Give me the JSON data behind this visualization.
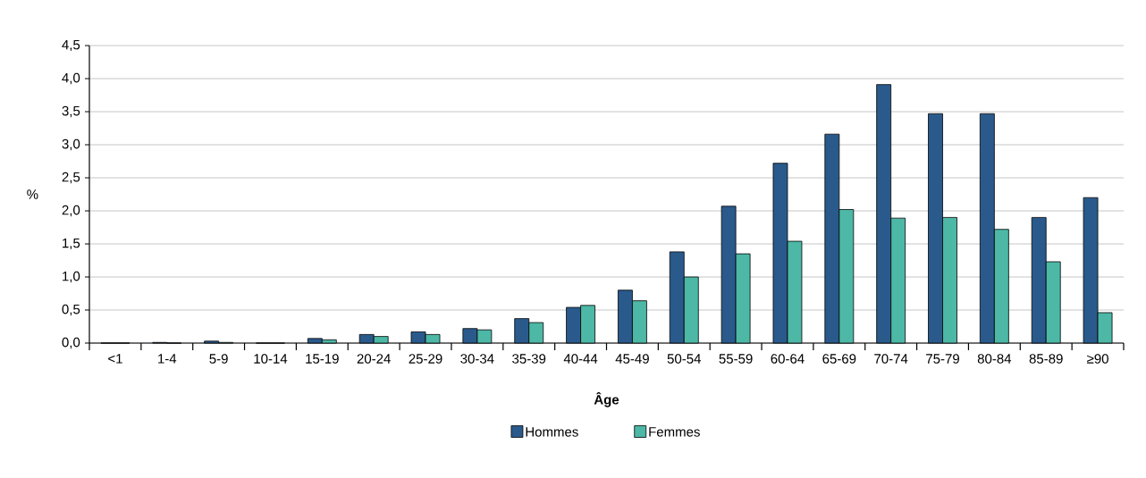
{
  "chart_data": {
    "type": "bar",
    "xlabel": "Âge",
    "ylabel": "%",
    "categories": [
      "<1",
      "1-4",
      "5-9",
      "10-14",
      "15-19",
      "20-24",
      "25-29",
      "30-34",
      "35-39",
      "40-44",
      "45-49",
      "50-54",
      "55-59",
      "60-64",
      "65-69",
      "70-74",
      "75-79",
      "80-84",
      "85-89",
      "≥90"
    ],
    "series": [
      {
        "name": "Hommes",
        "color": "#2a5a8c",
        "values": [
          0,
          0.01,
          0.03,
          0,
          0.07,
          0.13,
          0.17,
          0.22,
          0.37,
          0.54,
          0.8,
          1.38,
          2.07,
          2.72,
          3.16,
          3.91,
          3.47,
          3.47,
          1.9,
          2.2
        ]
      },
      {
        "name": "Femmes",
        "color": "#4db8a6",
        "values": [
          0,
          0,
          0.01,
          0,
          0.05,
          0.1,
          0.13,
          0.2,
          0.31,
          0.57,
          0.64,
          1.0,
          1.35,
          1.54,
          2.02,
          1.89,
          1.9,
          1.72,
          1.23,
          0.46
        ]
      }
    ],
    "ylim": [
      0,
      4.5
    ],
    "yticks": [
      {
        "value": 0,
        "label": "0,0"
      },
      {
        "value": 0.5,
        "label": "0,5"
      },
      {
        "value": 1,
        "label": "1,0"
      },
      {
        "value": 1.5,
        "label": "1,5"
      },
      {
        "value": 2,
        "label": "2,0"
      },
      {
        "value": 2.5,
        "label": "2,5"
      },
      {
        "value": 3,
        "label": "3,0"
      },
      {
        "value": 3.5,
        "label": "3,5"
      },
      {
        "value": 4,
        "label": "4,0"
      },
      {
        "value": 4.5,
        "label": "4,5"
      }
    ],
    "grid": "y",
    "legend": "bottom"
  }
}
